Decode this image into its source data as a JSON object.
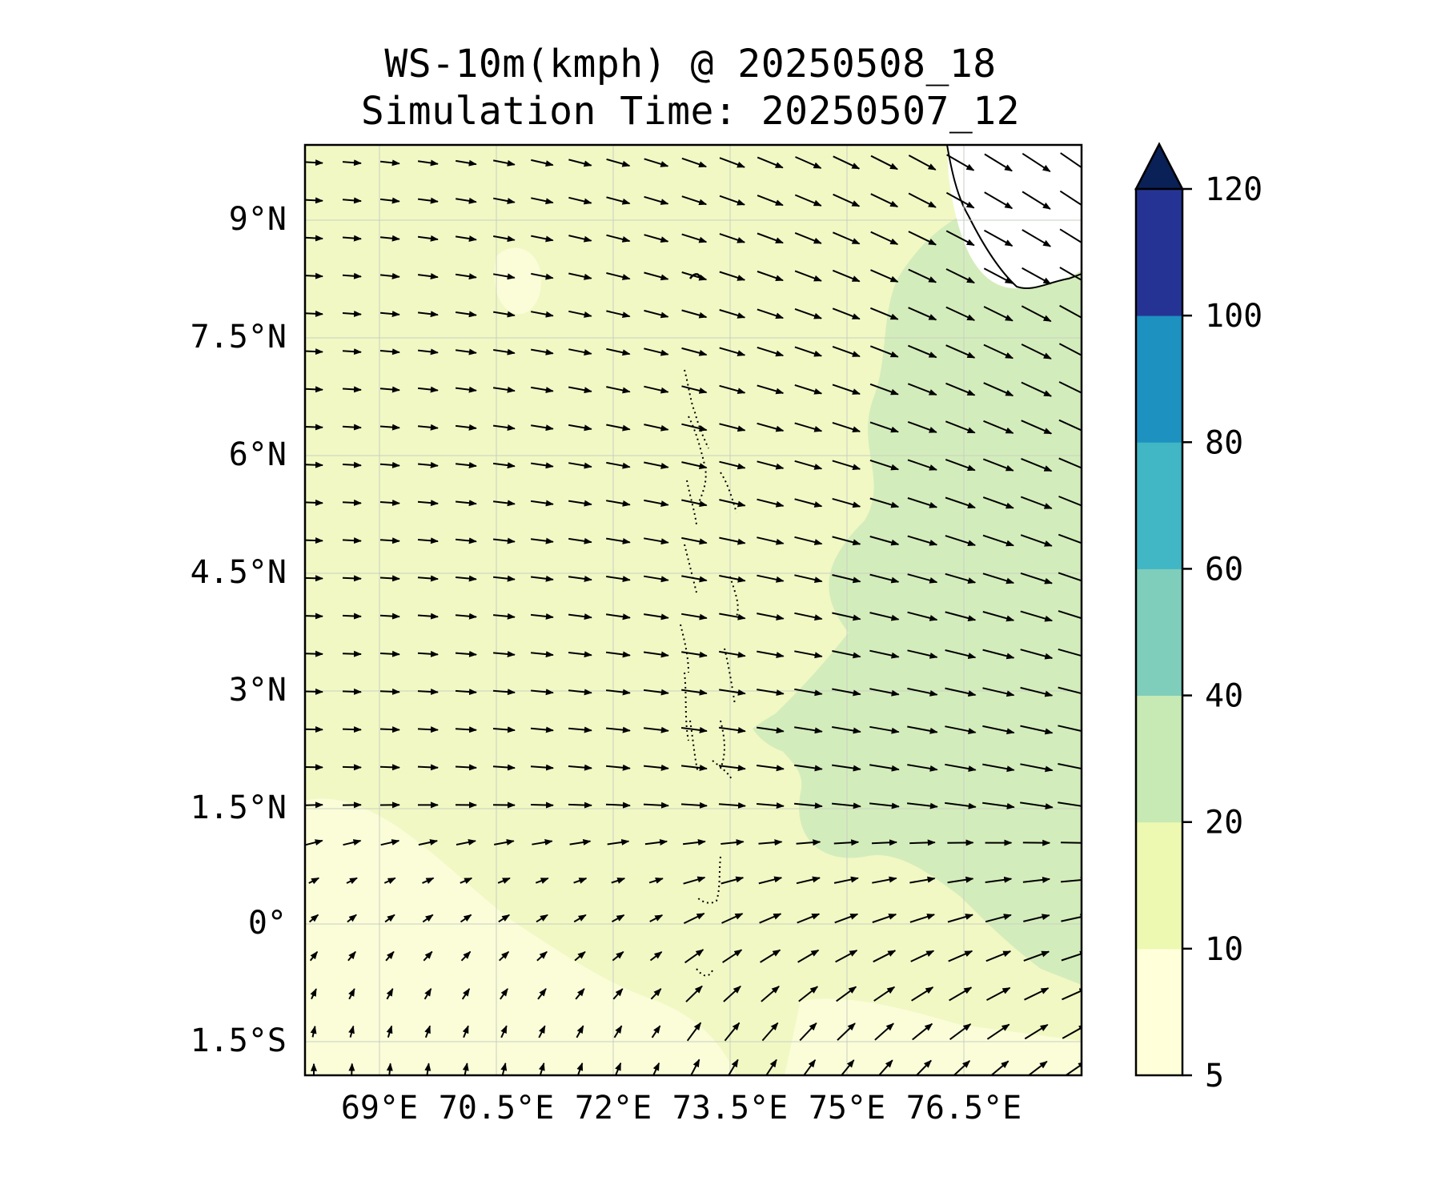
{
  "title": {
    "line1": "WS-10m(kmph) @ 20250508_18",
    "line2": "Simulation Time: 20250507_12"
  },
  "map": {
    "lat_labels": [
      "9°N",
      "7.5°N",
      "6°N",
      "4.5°N",
      "3°N",
      "1.5°N",
      "0°",
      "1.5°S"
    ],
    "lon_labels": [
      "69°E",
      "70.5°E",
      "72°E",
      "73.5°E",
      "75°E",
      "76.5°E"
    ],
    "lat_range": [
      -1.9,
      10.0
    ],
    "lon_range": [
      68.0,
      77.9
    ],
    "features": [
      "coastline-india-south-tip",
      "maldives-atolls",
      "wind-vectors",
      "wind-speed-contours"
    ]
  },
  "colorbar": {
    "levels": [
      5,
      10,
      20,
      40,
      60,
      80,
      100,
      120
    ],
    "tick_labels": [
      "5",
      "10",
      "20",
      "40",
      "60",
      "80",
      "100",
      "120"
    ],
    "colors": [
      "#ffffd9",
      "#edf8b1",
      "#c7e9b4",
      "#7fcdbb",
      "#41b6c4",
      "#1d91c0",
      "#253494",
      "#081d58"
    ],
    "extend": "max",
    "extend_color": "#0a2158"
  },
  "field_colors": {
    "calm": "#fbfdd9",
    "light": "#f1f8c4",
    "moderate": "#d3ecbb",
    "land": "#ffffff"
  }
}
